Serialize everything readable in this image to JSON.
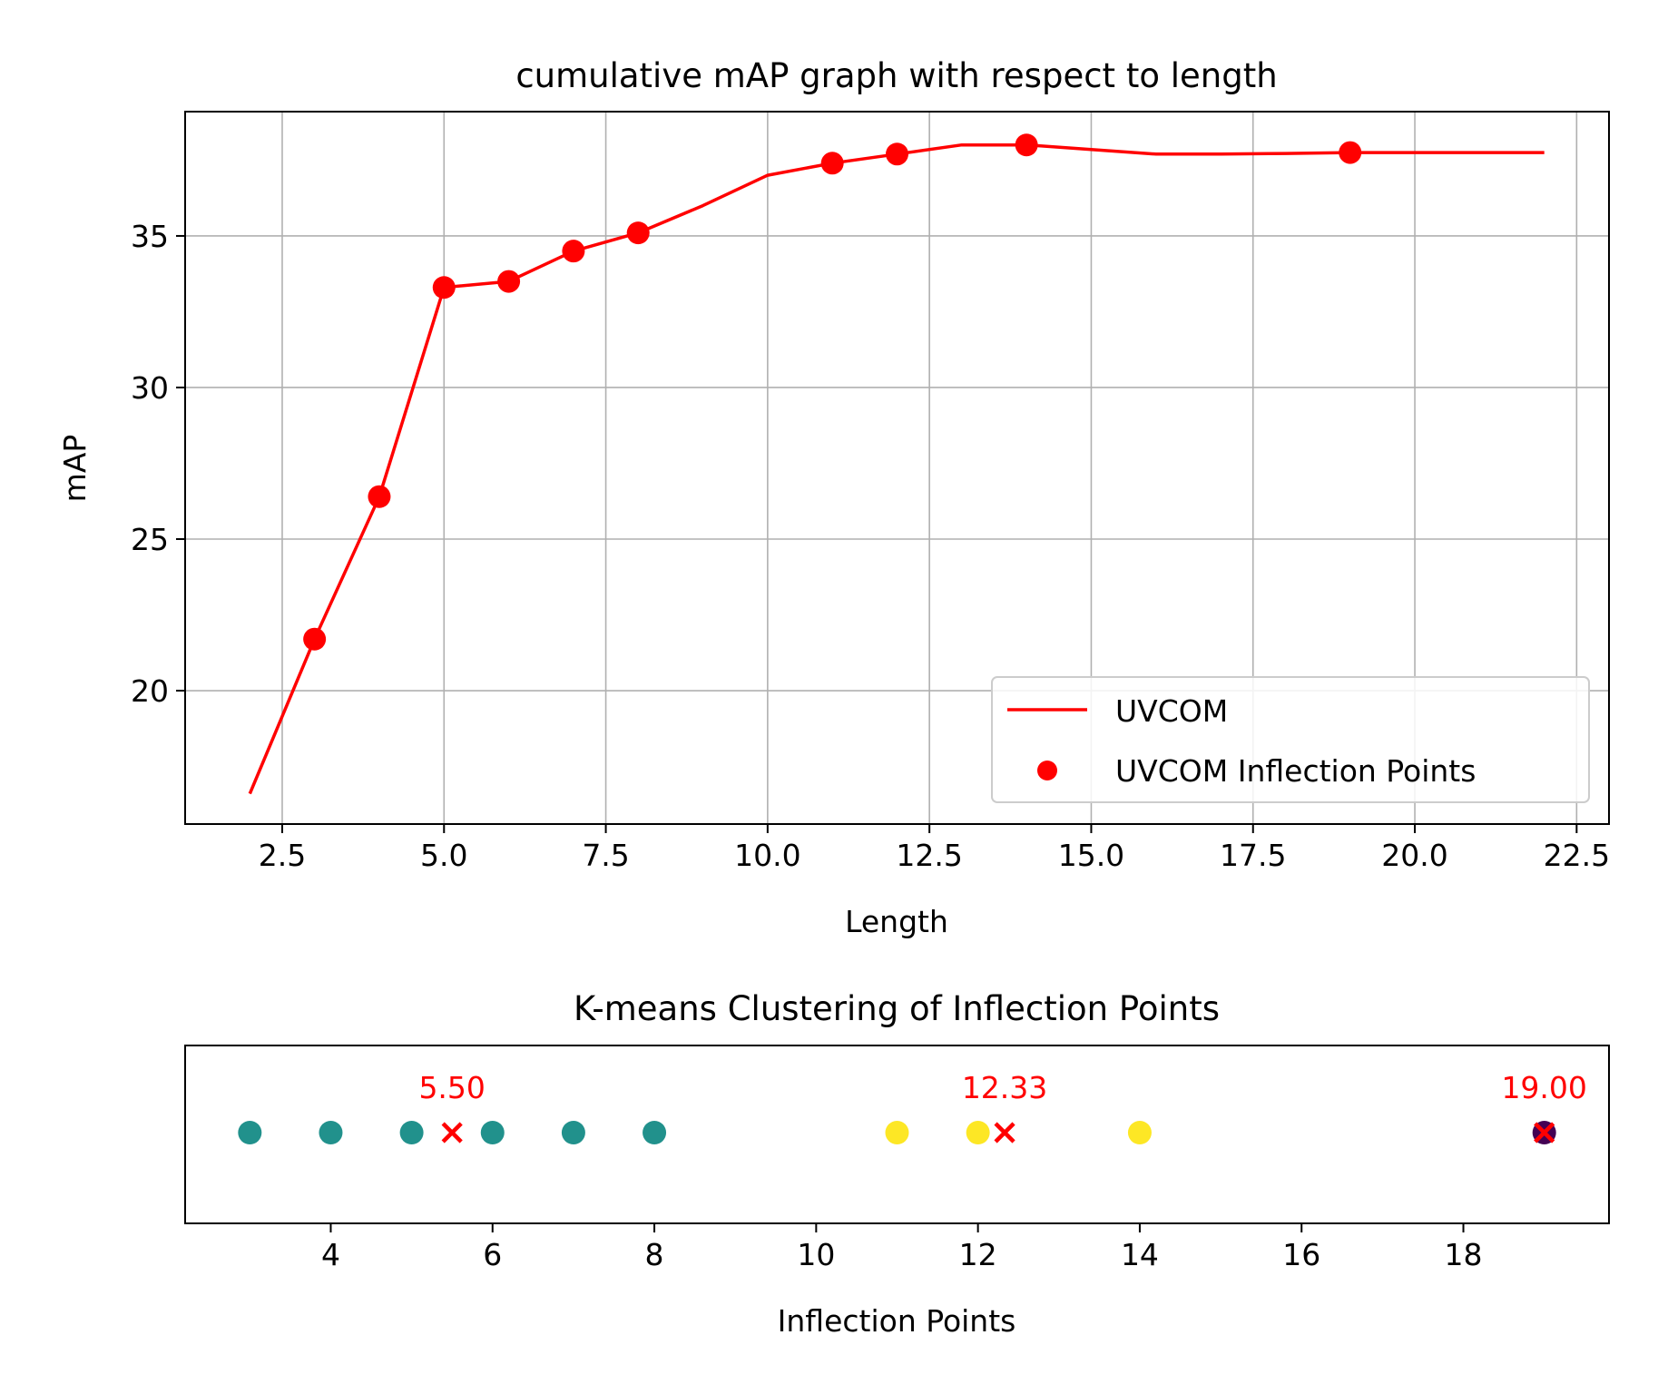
{
  "chart_data": [
    {
      "type": "line",
      "title": "cumulative mAP graph with respect to length",
      "xlabel": "Length",
      "ylabel": "mAP",
      "xlim": [
        1.0,
        23.0
      ],
      "ylim": [
        15.6,
        39.1
      ],
      "grid": true,
      "legend_position": "lower-right",
      "xticks": [
        "2.5",
        "5.0",
        "7.5",
        "10.0",
        "12.5",
        "15.0",
        "17.5",
        "20.0",
        "22.5"
      ],
      "xtick_values": [
        2.5,
        5.0,
        7.5,
        10.0,
        12.5,
        15.0,
        17.5,
        20.0,
        22.5
      ],
      "yticks": [
        "20",
        "25",
        "30",
        "35"
      ],
      "ytick_values": [
        20,
        25,
        30,
        35
      ],
      "series": [
        {
          "name": "UVCOM",
          "kind": "line",
          "color": "#ff0000",
          "x": [
            2,
            3,
            4,
            5,
            6,
            7,
            8,
            9,
            10,
            11,
            12,
            13,
            14,
            15,
            16,
            17,
            18,
            19,
            20,
            21,
            22
          ],
          "y": [
            16.6,
            21.7,
            26.4,
            33.3,
            33.5,
            34.5,
            35.1,
            36.0,
            37.0,
            37.4,
            37.7,
            38.0,
            38.0,
            37.85,
            37.7,
            37.7,
            37.72,
            37.75,
            37.75,
            37.75,
            37.75
          ]
        },
        {
          "name": "UVCOM Inflection Points",
          "kind": "scatter",
          "color": "#ff0000",
          "x": [
            3,
            4,
            5,
            6,
            7,
            8,
            11,
            12,
            14,
            19
          ],
          "y": [
            21.7,
            26.4,
            33.3,
            33.5,
            34.5,
            35.1,
            37.4,
            37.7,
            38.0,
            37.75
          ]
        }
      ]
    },
    {
      "type": "scatter",
      "title": "K-means Clustering of Inflection Points",
      "xlabel": "Inflection Points",
      "xlim": [
        2.2,
        19.8
      ],
      "xticks": [
        "4",
        "6",
        "8",
        "10",
        "12",
        "14",
        "16",
        "18"
      ],
      "xtick_values": [
        4,
        6,
        8,
        10,
        12,
        14,
        16,
        18
      ],
      "points": [
        {
          "x": 3,
          "cluster": 0
        },
        {
          "x": 4,
          "cluster": 0
        },
        {
          "x": 5,
          "cluster": 0
        },
        {
          "x": 6,
          "cluster": 0
        },
        {
          "x": 7,
          "cluster": 0
        },
        {
          "x": 8,
          "cluster": 0
        },
        {
          "x": 11,
          "cluster": 1
        },
        {
          "x": 12,
          "cluster": 1
        },
        {
          "x": 14,
          "cluster": 1
        },
        {
          "x": 19,
          "cluster": 2
        }
      ],
      "cluster_colors": [
        "#21918c",
        "#fde725",
        "#440154"
      ],
      "centroids": [
        {
          "x": 5.5,
          "label": "5.50"
        },
        {
          "x": 12.33,
          "label": "12.33"
        },
        {
          "x": 19.0,
          "label": "19.00"
        }
      ],
      "centroid_color": "#ff0000"
    }
  ]
}
